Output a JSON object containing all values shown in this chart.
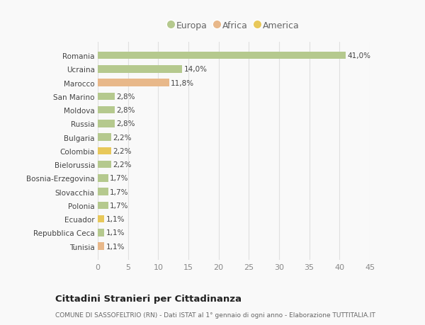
{
  "categories": [
    "Tunisia",
    "Repubblica Ceca",
    "Ecuador",
    "Polonia",
    "Slovacchia",
    "Bosnia-Erzegovina",
    "Bielorussia",
    "Colombia",
    "Bulgaria",
    "Russia",
    "Moldova",
    "San Marino",
    "Marocco",
    "Ucraina",
    "Romania"
  ],
  "values": [
    1.1,
    1.1,
    1.1,
    1.7,
    1.7,
    1.7,
    2.2,
    2.2,
    2.2,
    2.8,
    2.8,
    2.8,
    11.8,
    14.0,
    41.0
  ],
  "bar_colors_list": [
    "#e8b88a",
    "#b5c98e",
    "#e8c85a",
    "#b5c98e",
    "#b5c98e",
    "#b5c98e",
    "#b5c98e",
    "#e8c85a",
    "#b5c98e",
    "#b5c98e",
    "#b5c98e",
    "#b5c98e",
    "#e8b88a",
    "#b5c98e",
    "#b5c98e"
  ],
  "labels": [
    "1,1%",
    "1,1%",
    "1,1%",
    "1,7%",
    "1,7%",
    "1,7%",
    "2,2%",
    "2,2%",
    "2,2%",
    "2,8%",
    "2,8%",
    "2,8%",
    "11,8%",
    "14,0%",
    "41,0%"
  ],
  "legend": {
    "Europa": "#b5c98e",
    "Africa": "#e8b88a",
    "America": "#e8c85a"
  },
  "xlim": [
    0,
    45
  ],
  "xticks": [
    0,
    5,
    10,
    15,
    20,
    25,
    30,
    35,
    40,
    45
  ],
  "title": "Cittadini Stranieri per Cittadinanza",
  "subtitle": "COMUNE DI SASSOFELTRIO (RN) - Dati ISTAT al 1° gennaio di ogni anno - Elaborazione TUTTITALIA.IT",
  "bg_color": "#f9f9f9",
  "grid_color": "#e0e0e0"
}
